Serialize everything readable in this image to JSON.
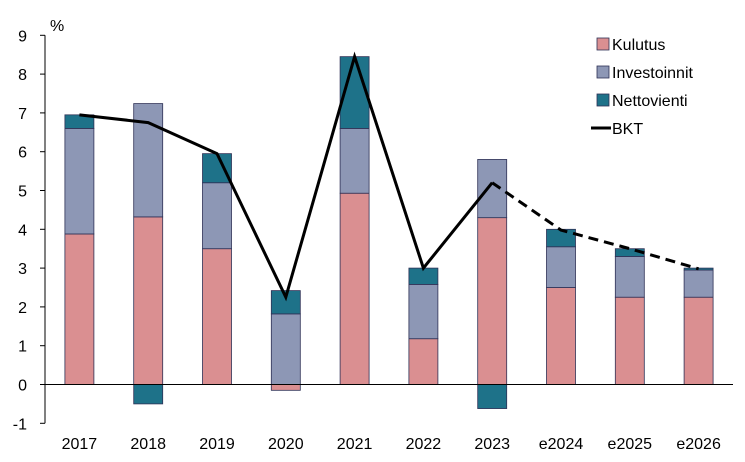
{
  "chart_data": {
    "type": "bar",
    "stacked": true,
    "unit_label": "%",
    "categories": [
      "2017",
      "2018",
      "2019",
      "2020",
      "2021",
      "2022",
      "2023",
      "e2024",
      "e2025",
      "e2026"
    ],
    "y_ticks": [
      "-1",
      "0",
      "1",
      "2",
      "3",
      "4",
      "5",
      "6",
      "7",
      "8",
      "9"
    ],
    "ylim": [
      -1,
      9
    ],
    "grid": false,
    "legend_position": "top-right",
    "series": [
      {
        "name": "Kulutus",
        "color": "#DA8F91",
        "values": [
          3.88,
          4.32,
          3.5,
          -0.15,
          4.93,
          1.18,
          4.3,
          2.5,
          2.25,
          2.25
        ]
      },
      {
        "name": "Investoinnit",
        "color": "#8D97B5",
        "values": [
          2.72,
          2.92,
          1.7,
          1.82,
          1.67,
          1.4,
          1.5,
          1.05,
          1.05,
          0.7
        ]
      },
      {
        "name": "Nettovienti",
        "color": "#1E7289",
        "values": [
          0.35,
          -0.5,
          0.75,
          0.6,
          1.85,
          0.42,
          -0.62,
          0.45,
          0.2,
          0.05
        ]
      }
    ],
    "line": {
      "name": "BKT",
      "color": "#000000",
      "values": [
        6.95,
        6.75,
        5.95,
        2.25,
        8.45,
        3.0,
        5.2,
        3.98,
        3.5,
        2.98
      ],
      "dashed_from_index": 6
    }
  }
}
